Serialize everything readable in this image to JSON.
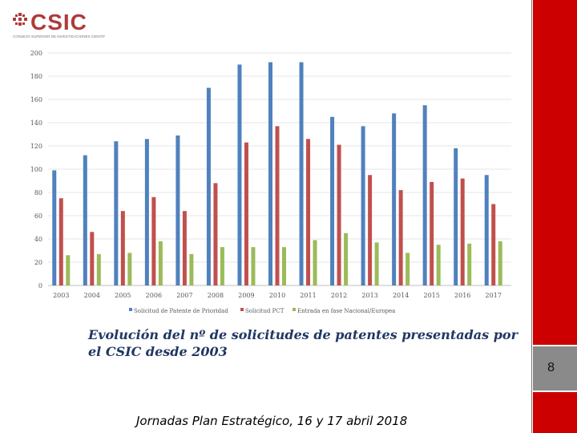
{
  "logo": {
    "brand": "CSIC",
    "subtitle": "CONSEJO SUPERIOR DE INVESTIGACIONES CIENTÍFICAS"
  },
  "colors": {
    "series1": "#4f81bd",
    "series2": "#c0504d",
    "series3": "#9bbb59",
    "accent_red": "#cc0000",
    "caption": "#1f3864"
  },
  "chart_data": {
    "type": "bar",
    "title": "",
    "xlabel": "",
    "ylabel": "",
    "ylim": [
      0,
      200
    ],
    "yticks": [
      0,
      20,
      40,
      60,
      80,
      100,
      120,
      140,
      160,
      180,
      200
    ],
    "categories": [
      "2003",
      "2004",
      "2005",
      "2006",
      "2007",
      "2008",
      "2009",
      "2010",
      "2011",
      "2012",
      "2013",
      "2014",
      "2015",
      "2016",
      "2017"
    ],
    "series": [
      {
        "name": "Solicitud de Patente de Prioridad",
        "values": [
          99,
          112,
          124,
          126,
          129,
          170,
          190,
          192,
          192,
          145,
          137,
          148,
          155,
          118,
          95
        ]
      },
      {
        "name": "Solicitud PCT",
        "values": [
          75,
          46,
          64,
          76,
          64,
          88,
          123,
          137,
          126,
          121,
          95,
          82,
          89,
          92,
          70
        ]
      },
      {
        "name": "Entrada en fase Nacional/Europea",
        "values": [
          26,
          27,
          28,
          38,
          27,
          33,
          33,
          33,
          39,
          45,
          37,
          28,
          35,
          36,
          38
        ]
      }
    ],
    "legend_position": "bottom"
  },
  "caption": "Evolución del nº de solicitudes de patentes presentadas por el CSIC desde 2003",
  "page_number": "8",
  "footer": "Jornadas Plan Estratégico, 16 y 17 abril 2018"
}
